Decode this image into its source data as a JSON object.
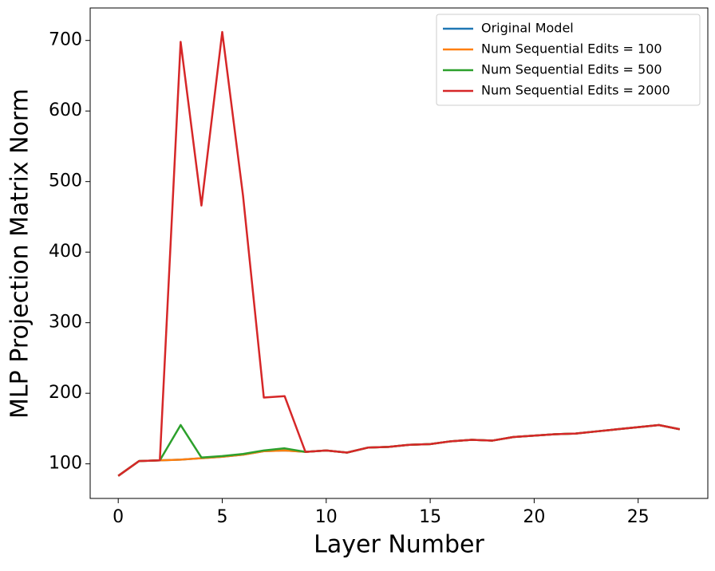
{
  "chart_data": {
    "type": "line",
    "x_label": "Layer Number",
    "y_label": "MLP Projection Matrix Norm",
    "x": [
      0,
      1,
      2,
      3,
      4,
      5,
      6,
      7,
      8,
      9,
      10,
      11,
      12,
      13,
      14,
      15,
      16,
      17,
      18,
      19,
      20,
      21,
      22,
      23,
      24,
      25,
      26,
      27
    ],
    "series": [
      {
        "name": "Original Model",
        "color": "#1f77b4",
        "values": [
          83,
          104,
          105,
          106,
          108,
          110,
          113,
          118,
          119,
          117,
          119,
          116,
          123,
          124,
          127,
          128,
          132,
          134,
          133,
          138,
          140,
          142,
          143,
          146,
          149,
          152,
          155,
          149
        ]
      },
      {
        "name": "Num Sequential Edits = 100",
        "color": "#ff7f0e",
        "values": [
          83,
          104,
          105,
          106,
          108,
          110,
          113,
          118,
          119,
          117,
          119,
          116,
          123,
          124,
          127,
          128,
          132,
          134,
          133,
          138,
          140,
          142,
          143,
          146,
          149,
          152,
          155,
          149
        ]
      },
      {
        "name": "Num Sequential Edits = 500",
        "color": "#2ca02c",
        "values": [
          83,
          104,
          105,
          155,
          109,
          111,
          114,
          119,
          122,
          117,
          119,
          116,
          123,
          124,
          127,
          128,
          132,
          134,
          133,
          138,
          140,
          142,
          143,
          146,
          149,
          152,
          155,
          149
        ]
      },
      {
        "name": "Num Sequential Edits = 2000",
        "color": "#d62728",
        "values": [
          83,
          104,
          105,
          698,
          466,
          712,
          480,
          194,
          196,
          117,
          119,
          116,
          123,
          124,
          127,
          128,
          132,
          134,
          133,
          138,
          140,
          142,
          143,
          146,
          149,
          152,
          155,
          149
        ]
      }
    ],
    "xlim": [
      -1.35,
      28.35
    ],
    "xticks": [
      0,
      5,
      10,
      15,
      20,
      25
    ],
    "ylim": [
      51,
      746
    ],
    "yticks": [
      100,
      200,
      300,
      400,
      500,
      600,
      700
    ],
    "legend": "upper right",
    "grid": false
  }
}
